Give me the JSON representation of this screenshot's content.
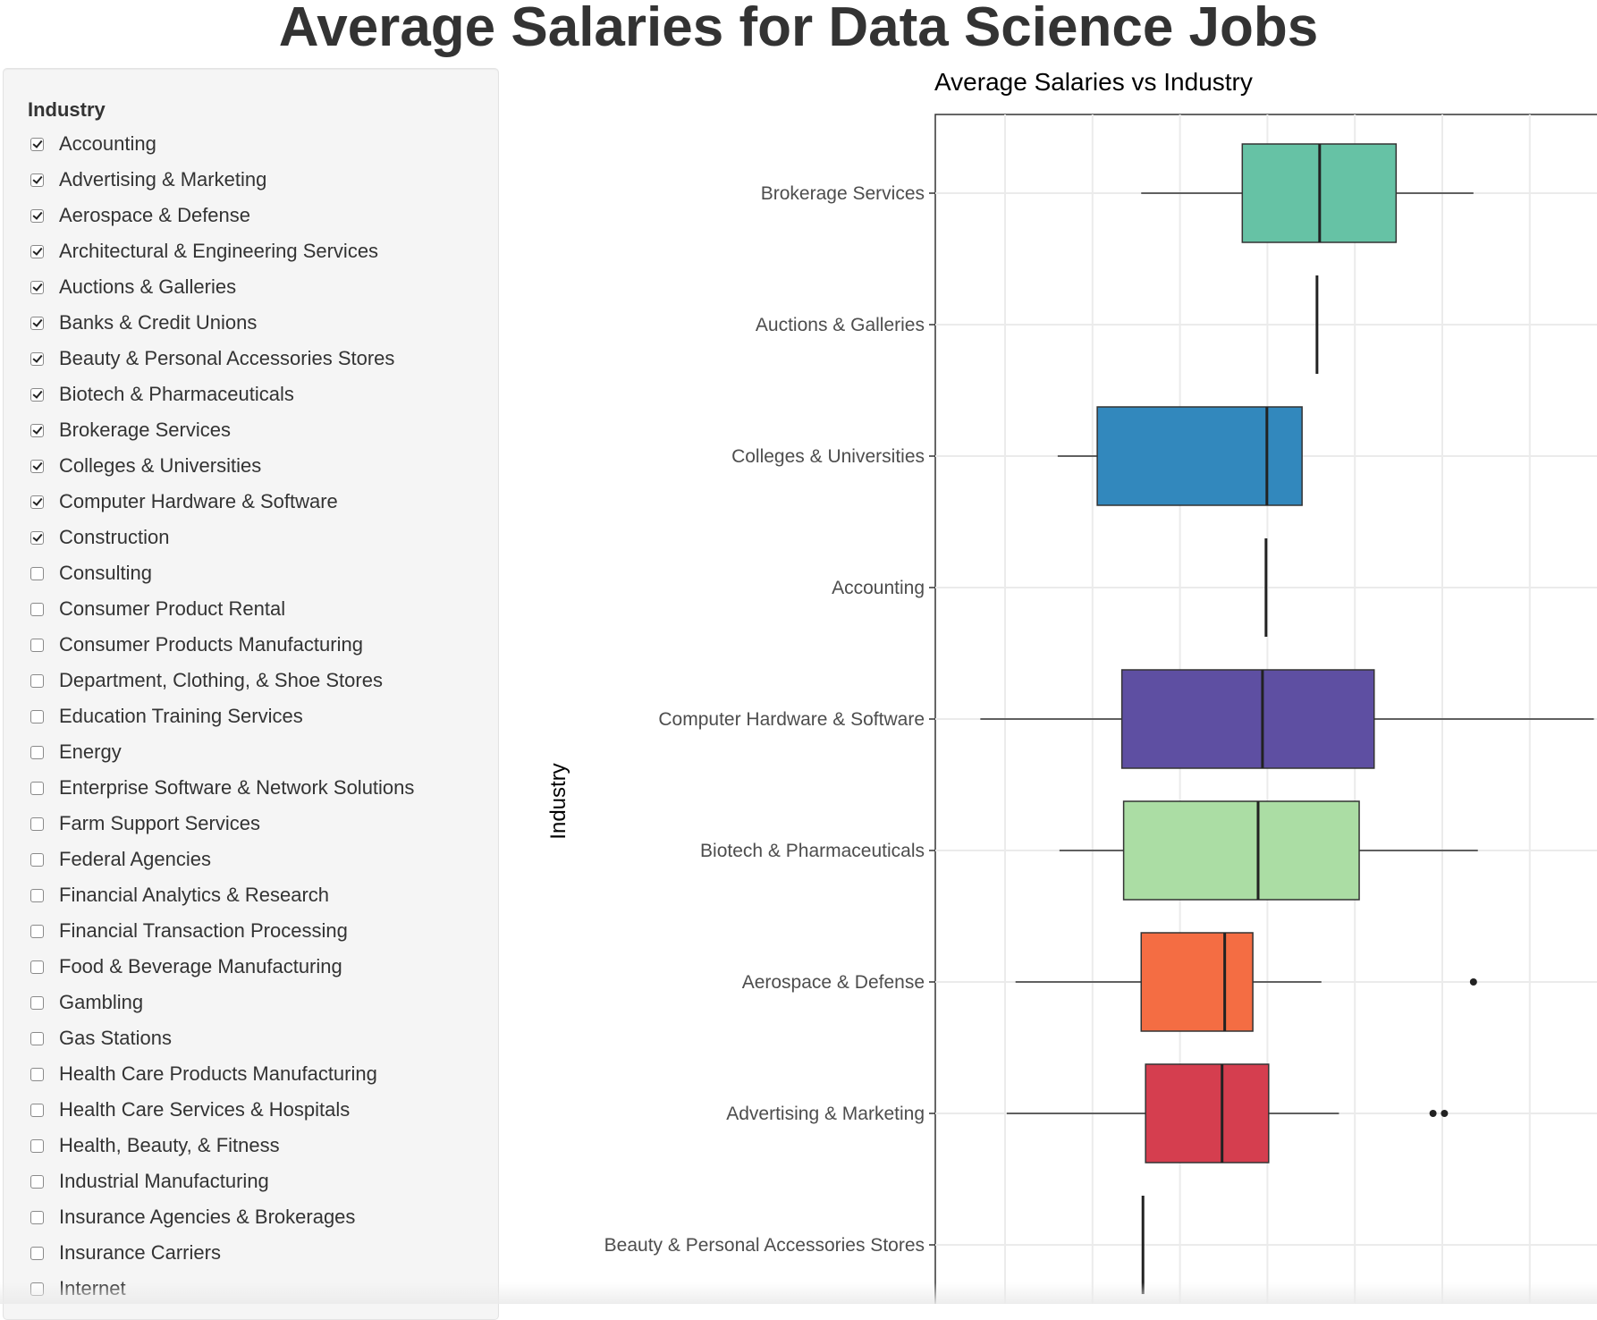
{
  "page": {
    "title": "Average Salaries for Data Science Jobs"
  },
  "sidebar": {
    "label": "Industry",
    "items": [
      {
        "label": "Accounting",
        "checked": true
      },
      {
        "label": "Advertising & Marketing",
        "checked": true
      },
      {
        "label": "Aerospace & Defense",
        "checked": true
      },
      {
        "label": "Architectural & Engineering Services",
        "checked": true
      },
      {
        "label": "Auctions & Galleries",
        "checked": true
      },
      {
        "label": "Banks & Credit Unions",
        "checked": true
      },
      {
        "label": "Beauty & Personal Accessories Stores",
        "checked": true
      },
      {
        "label": "Biotech & Pharmaceuticals",
        "checked": true
      },
      {
        "label": "Brokerage Services",
        "checked": true
      },
      {
        "label": "Colleges & Universities",
        "checked": true
      },
      {
        "label": "Computer Hardware & Software",
        "checked": true
      },
      {
        "label": "Construction",
        "checked": true
      },
      {
        "label": "Consulting",
        "checked": false
      },
      {
        "label": "Consumer Product Rental",
        "checked": false
      },
      {
        "label": "Consumer Products Manufacturing",
        "checked": false
      },
      {
        "label": "Department, Clothing, & Shoe Stores",
        "checked": false
      },
      {
        "label": "Education Training Services",
        "checked": false
      },
      {
        "label": "Energy",
        "checked": false
      },
      {
        "label": "Enterprise Software & Network Solutions",
        "checked": false
      },
      {
        "label": "Farm Support Services",
        "checked": false
      },
      {
        "label": "Federal Agencies",
        "checked": false
      },
      {
        "label": "Financial Analytics & Research",
        "checked": false
      },
      {
        "label": "Financial Transaction Processing",
        "checked": false
      },
      {
        "label": "Food & Beverage Manufacturing",
        "checked": false
      },
      {
        "label": "Gambling",
        "checked": false
      },
      {
        "label": "Gas Stations",
        "checked": false
      },
      {
        "label": "Health Care Products Manufacturing",
        "checked": false
      },
      {
        "label": "Health Care Services & Hospitals",
        "checked": false
      },
      {
        "label": "Health, Beauty, & Fitness",
        "checked": false
      },
      {
        "label": "Industrial Manufacturing",
        "checked": false
      },
      {
        "label": "Insurance Agencies & Brokerages",
        "checked": false
      },
      {
        "label": "Insurance Carriers",
        "checked": false
      },
      {
        "label": "Internet",
        "checked": false
      }
    ]
  },
  "chart_data": {
    "type": "boxplot",
    "title": "Average Salaries vs Industry",
    "ylabel": "Industry",
    "xlabel": "",
    "xlim": [
      0.4,
      7.75
    ],
    "grid": true,
    "categories": [
      "Brokerage Services",
      "Auctions & Galleries",
      "Colleges & Universities",
      "Accounting",
      "Computer Hardware & Software",
      "Biotech & Pharmaceuticals",
      "Aerospace & Defense",
      "Advertising & Marketing",
      "Beauty & Personal Accessories Stores"
    ],
    "series": [
      {
        "category": "Brokerage Services",
        "color": "#66c2a5",
        "whisker_low": 2.6,
        "q1": 3.75,
        "median": 4.63,
        "q3": 5.5,
        "whisker_high": 6.38,
        "outliers": []
      },
      {
        "category": "Auctions & Galleries",
        "color": "#66c2a5",
        "whisker_low": 4.6,
        "q1": 4.6,
        "median": 4.6,
        "q3": 4.6,
        "whisker_high": 4.6,
        "outliers": []
      },
      {
        "category": "Colleges & Universities",
        "color": "#3288bd",
        "whisker_low": 1.65,
        "q1": 2.1,
        "median": 4.03,
        "q3": 4.43,
        "whisker_high": 4.43,
        "outliers": []
      },
      {
        "category": "Accounting",
        "color": "#3288bd",
        "whisker_low": 4.02,
        "q1": 4.02,
        "median": 4.02,
        "q3": 4.02,
        "whisker_high": 4.02,
        "outliers": []
      },
      {
        "category": "Computer Hardware & Software",
        "color": "#5e4fa2",
        "whisker_low": 0.77,
        "q1": 2.38,
        "median": 3.98,
        "q3": 5.25,
        "whisker_high": 7.75,
        "outliers": []
      },
      {
        "category": "Biotech & Pharmaceuticals",
        "color": "#abdda4",
        "whisker_low": 1.67,
        "q1": 2.4,
        "median": 3.93,
        "q3": 5.08,
        "whisker_high": 6.43,
        "outliers": []
      },
      {
        "category": "Aerospace & Defense",
        "color": "#f46d43",
        "whisker_low": 1.17,
        "q1": 2.6,
        "median": 3.55,
        "q3": 3.87,
        "whisker_high": 4.65,
        "outliers": [
          6.38
        ]
      },
      {
        "category": "Advertising & Marketing",
        "color": "#d53e4f",
        "whisker_low": 1.07,
        "q1": 2.65,
        "median": 3.52,
        "q3": 4.05,
        "whisker_high": 4.85,
        "outliers": [
          5.92,
          6.05
        ]
      },
      {
        "category": "Beauty & Personal Accessories Stores",
        "color": "#d53e4f",
        "whisker_low": 2.62,
        "q1": 2.62,
        "median": 2.62,
        "q3": 2.62,
        "whisker_high": 2.62,
        "outliers": []
      }
    ]
  }
}
